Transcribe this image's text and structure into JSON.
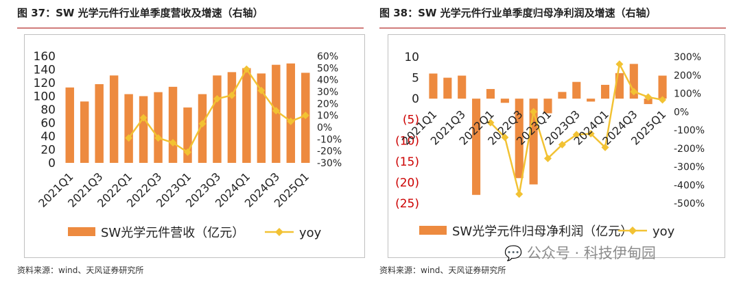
{
  "colors": {
    "bar": "#ed8a3f",
    "line": "#f2c233",
    "red_label": "#cc0000"
  },
  "left": {
    "title": "图 37：SW 光学元件行业单季度营收及增速（右轴）",
    "source": "资料来源：wind、天风证券研究所"
  },
  "right": {
    "title": "图 38：SW 光学元件行业单季度归母净利润及增速（右轴）",
    "source": "资料来源：wind、天风证券研究所",
    "watermark": "公众号 · 科技伊甸园"
  },
  "chart_data": [
    {
      "type": "bar",
      "categories": [
        "2021Q1",
        "2021Q2",
        "2021Q3",
        "2021Q4",
        "2022Q1",
        "2022Q2",
        "2022Q3",
        "2022Q4",
        "2023Q1",
        "2023Q2",
        "2023Q3",
        "2023Q4",
        "2024Q1",
        "2024Q2",
        "2024Q3",
        "2024Q4",
        "2025Q1"
      ],
      "tick_labels": [
        "2021Q1",
        "2021Q3",
        "2022Q1",
        "2022Q3",
        "2023Q1",
        "2023Q3",
        "2024Q1",
        "2024Q3",
        "2025Q1"
      ],
      "series": [
        {
          "name": "SW光学元件营收（亿元）",
          "kind": "bar",
          "axis": "left",
          "values": [
            113,
            92,
            118,
            131,
            103,
            100,
            106,
            114,
            83,
            103,
            131,
            136,
            142,
            134,
            147,
            149,
            135
          ]
        },
        {
          "name": "yoy",
          "kind": "line",
          "axis": "right",
          "values": [
            null,
            null,
            null,
            null,
            -9,
            8,
            -9,
            -13,
            -21,
            3,
            24,
            27,
            49,
            31,
            14,
            5,
            10
          ]
        }
      ],
      "ylim": [
        0,
        160
      ],
      "yticks": [
        0,
        20,
        40,
        60,
        80,
        100,
        120,
        140,
        160
      ],
      "y2lim": [
        -30,
        60
      ],
      "y2ticks": [
        "-30%",
        "-20%",
        "-10%",
        "0%",
        "10%",
        "20%",
        "30%",
        "40%",
        "50%",
        "60%"
      ]
    },
    {
      "type": "bar",
      "categories": [
        "2021Q1",
        "2021Q2",
        "2021Q3",
        "2021Q4",
        "2022Q1",
        "2022Q2",
        "2022Q3",
        "2022Q4",
        "2023Q1",
        "2023Q2",
        "2023Q3",
        "2023Q4",
        "2024Q1",
        "2024Q2",
        "2024Q3",
        "2024Q4",
        "2025Q1"
      ],
      "tick_labels": [
        "2021Q1",
        "2021Q3",
        "2022Q1",
        "2022Q3",
        "2023Q1",
        "2023Q3",
        "2024Q1",
        "2024Q3",
        "2025Q1"
      ],
      "series": [
        {
          "name": "SW光学元件归母净利润（亿元）",
          "kind": "bar",
          "axis": "left",
          "values": [
            6,
            5,
            5.5,
            -23,
            2.3,
            -1,
            -19,
            -20.5,
            -3.5,
            1.6,
            4,
            -0.7,
            3.3,
            6.1,
            8.3,
            -1.3,
            5.5
          ]
        },
        {
          "name": "yoy",
          "kind": "line",
          "axis": "right",
          "values": [
            null,
            null,
            null,
            null,
            -60,
            -140,
            -450,
            0,
            -255,
            -180,
            -125,
            -120,
            -195,
            260,
            110,
            80,
            65
          ]
        }
      ],
      "ylim": [
        -25,
        10
      ],
      "yticks_left": [
        "(25)",
        "(20)",
        "(15)",
        "(10)",
        "(5)",
        "0",
        "5",
        "10"
      ],
      "y2lim": [
        -500,
        300
      ],
      "y2ticks": [
        "-500%",
        "-400%",
        "-300%",
        "-200%",
        "-100%",
        "0%",
        "100%",
        "200%",
        "300%"
      ]
    }
  ]
}
